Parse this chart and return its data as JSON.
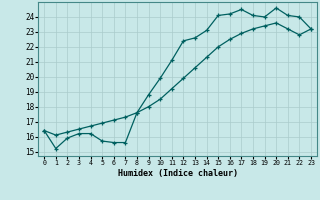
{
  "xlabel": "Humidex (Indice chaleur)",
  "bg_color": "#c8e8e8",
  "grid_color": "#aacccc",
  "line_color": "#006060",
  "xlim": [
    -0.5,
    23.5
  ],
  "ylim": [
    14.7,
    25.0
  ],
  "xticks": [
    0,
    1,
    2,
    3,
    4,
    5,
    6,
    7,
    8,
    9,
    10,
    11,
    12,
    13,
    14,
    15,
    16,
    17,
    18,
    19,
    20,
    21,
    22,
    23
  ],
  "yticks": [
    15,
    16,
    17,
    18,
    19,
    20,
    21,
    22,
    23,
    24
  ],
  "line1_x": [
    0,
    1,
    2,
    3,
    4,
    5,
    6,
    7,
    8,
    9,
    10,
    11,
    12,
    13,
    14,
    15,
    16,
    17,
    18,
    19,
    20,
    21,
    22,
    23
  ],
  "line1_y": [
    16.4,
    15.2,
    15.9,
    16.2,
    16.2,
    15.7,
    15.6,
    15.6,
    17.6,
    18.8,
    19.9,
    21.1,
    22.4,
    22.6,
    23.1,
    24.1,
    24.2,
    24.5,
    24.1,
    24.0,
    24.6,
    24.1,
    24.0,
    23.2
  ],
  "line2_x": [
    0,
    1,
    2,
    3,
    4,
    5,
    6,
    7,
    8,
    9,
    10,
    11,
    12,
    13,
    14,
    15,
    16,
    17,
    18,
    19,
    20,
    21,
    22,
    23
  ],
  "line2_y": [
    16.4,
    16.1,
    16.3,
    16.5,
    16.7,
    16.9,
    17.1,
    17.3,
    17.6,
    18.0,
    18.5,
    19.2,
    19.9,
    20.6,
    21.3,
    22.0,
    22.5,
    22.9,
    23.2,
    23.4,
    23.6,
    23.2,
    22.8,
    23.2
  ]
}
